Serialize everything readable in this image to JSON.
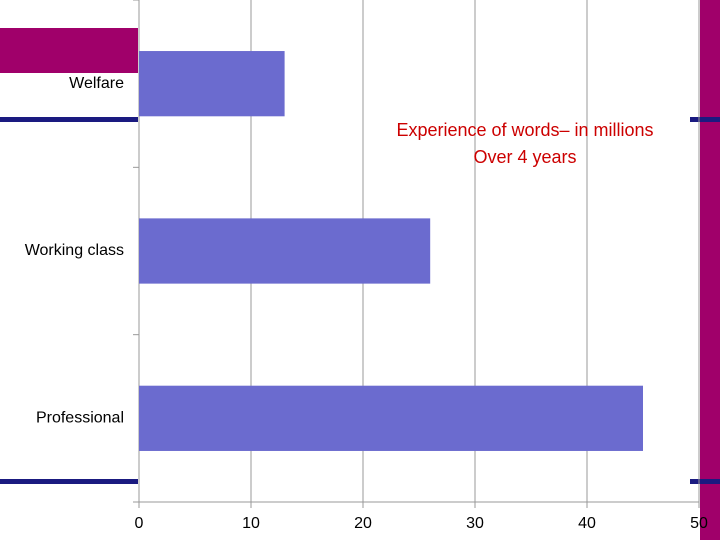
{
  "chart_data": {
    "type": "bar",
    "orientation": "horizontal",
    "title": "Experience of words– in millions",
    "subtitle": "Over 4 years",
    "categories": [
      "Welfare",
      "Working class",
      "Professional"
    ],
    "values": [
      13,
      26,
      45
    ],
    "color": "#6b6bcf",
    "xlim": [
      0,
      50
    ],
    "xticks": [
      0,
      10,
      20,
      30,
      40,
      50
    ],
    "grid": true
  }
}
